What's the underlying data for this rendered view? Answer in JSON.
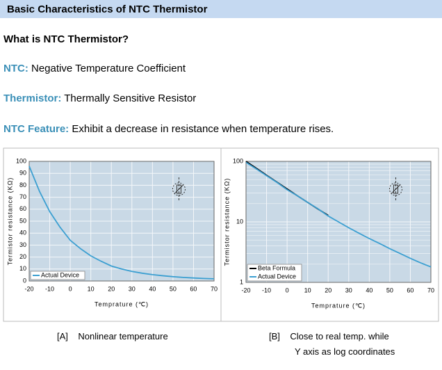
{
  "header": {
    "title": "Basic Characteristics of NTC Thermistor"
  },
  "question": "What is NTC Thermistor?",
  "definitions": [
    {
      "term": "NTC:",
      "text": "Negative Temperature Coefficient"
    },
    {
      "term": "Thermistor:",
      "text": "Thermally Sensitive Resistor"
    },
    {
      "term": "NTC Feature:",
      "text": "Exhibit a decrease in resistance when temperature rises."
    }
  ],
  "chart_data": [
    {
      "type": "line",
      "xlabel": "Temprature (℃)",
      "ylabel": "Termistor resistance (KΩ)",
      "x": [
        -20,
        -15,
        -10,
        -5,
        0,
        5,
        10,
        15,
        20,
        25,
        30,
        35,
        40,
        45,
        50,
        55,
        60,
        65,
        70
      ],
      "series": [
        {
          "name": "Actual Device",
          "color": "#3b9fd1",
          "values": [
            96,
            75,
            58,
            45,
            34,
            27,
            21,
            16.5,
            12.5,
            10,
            8,
            6.5,
            5.3,
            4.4,
            3.6,
            3,
            2.5,
            2.1,
            1.8
          ]
        }
      ],
      "xlim": [
        -20,
        70
      ],
      "xticks": [
        -20,
        -10,
        0,
        10,
        20,
        30,
        40,
        50,
        60,
        70
      ],
      "ylim": [
        0,
        100
      ],
      "yticks": [
        0,
        10,
        20,
        30,
        40,
        50,
        60,
        70,
        80,
        90,
        100
      ],
      "log_y": false,
      "grid": true,
      "legend": "lower-left"
    },
    {
      "type": "line",
      "xlabel": "Temprature (℃)",
      "ylabel": "Termistor resistance (KΩ)",
      "x": [
        -20,
        -15,
        -10,
        -5,
        0,
        5,
        10,
        15,
        20,
        25,
        30,
        35,
        40,
        45,
        50,
        55,
        60,
        65,
        70
      ],
      "series": [
        {
          "name": "Beta Formula",
          "color": "#000000",
          "values": [
            100,
            77,
            59,
            45.5,
            35,
            27,
            21,
            16.3,
            12.8,
            null,
            null,
            null,
            null,
            null,
            null,
            null,
            null,
            null,
            null
          ]
        },
        {
          "name": "Actual Device",
          "color": "#3b9fd1",
          "values": [
            96,
            75,
            58,
            45,
            34,
            27,
            21,
            16.5,
            12.5,
            10,
            8,
            6.5,
            5.3,
            4.4,
            3.6,
            3,
            2.5,
            2.1,
            1.8
          ]
        }
      ],
      "xlim": [
        -20,
        70
      ],
      "xticks": [
        -20,
        -10,
        0,
        10,
        20,
        30,
        40,
        50,
        60,
        70
      ],
      "ylim": [
        1,
        100
      ],
      "yticks": [
        1,
        10,
        100
      ],
      "yminorticks": [
        2,
        3,
        4,
        5,
        6,
        7,
        8,
        9,
        20,
        30,
        40,
        50,
        60,
        70,
        80,
        90
      ],
      "log_y": true,
      "grid": true,
      "legend": "lower-left"
    }
  ],
  "captions": [
    {
      "label": "[A]",
      "lines": [
        "Nonlinear temperature"
      ]
    },
    {
      "label": "[B]",
      "lines": [
        "Close to real temp. while",
        "Y axis as log coordinates"
      ]
    }
  ]
}
